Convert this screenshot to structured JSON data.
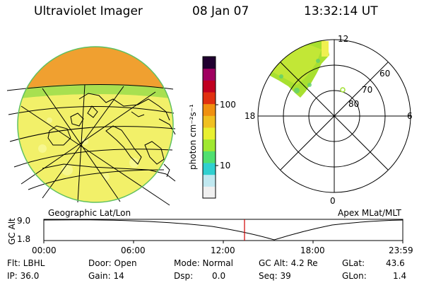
{
  "header": {
    "title": "Ultraviolet Imager",
    "date": "08 Jan 07",
    "time": "13:32:14 UT"
  },
  "colorbar": {
    "unit_label": "photon cm⁻²s⁻¹",
    "ticks": [
      "100",
      "10"
    ],
    "colors": [
      "#f0f0f0",
      "#c0e8f0",
      "#30d0d0",
      "#50e070",
      "#a0e830",
      "#e8f030",
      "#f0c020",
      "#f09010",
      "#e03010",
      "#c00020",
      "#a00060",
      "#200030"
    ]
  },
  "left_map": {
    "caption": "Geographic Lat/Lon",
    "colors": {
      "disk": "#f0f060",
      "day_cap": "#f0a030",
      "coast": "#000000",
      "rim": "#60c060"
    }
  },
  "right_polar": {
    "caption": "Apex MLat/MLT",
    "mlt_labels": {
      "top": "12",
      "left": "18",
      "right": "6",
      "bottom": "0"
    },
    "lat_labels": [
      "60",
      "70",
      "80"
    ]
  },
  "timeline": {
    "axis_label": "GC Alt",
    "y_ticks": [
      "9.0",
      "1.8"
    ],
    "x_ticks": [
      "00:00",
      "06:00",
      "12:00",
      "18:00",
      "23:59"
    ],
    "marker_color": "#d00000"
  },
  "status": {
    "filter": "Flt: LBHL",
    "ip": "IP: 36.0",
    "door": "Door: Open",
    "gain": "Gain: 14",
    "mode": "Mode: Normal",
    "dsp_label": "Dsp:",
    "dsp_value": "0.0",
    "gc_alt": "GC Alt: 4.2 Re",
    "seq": "Seq: 39",
    "glat_label": "GLat:",
    "glat_value": "43.6",
    "glon_label": "GLon:",
    "glon_value": "1.4"
  }
}
